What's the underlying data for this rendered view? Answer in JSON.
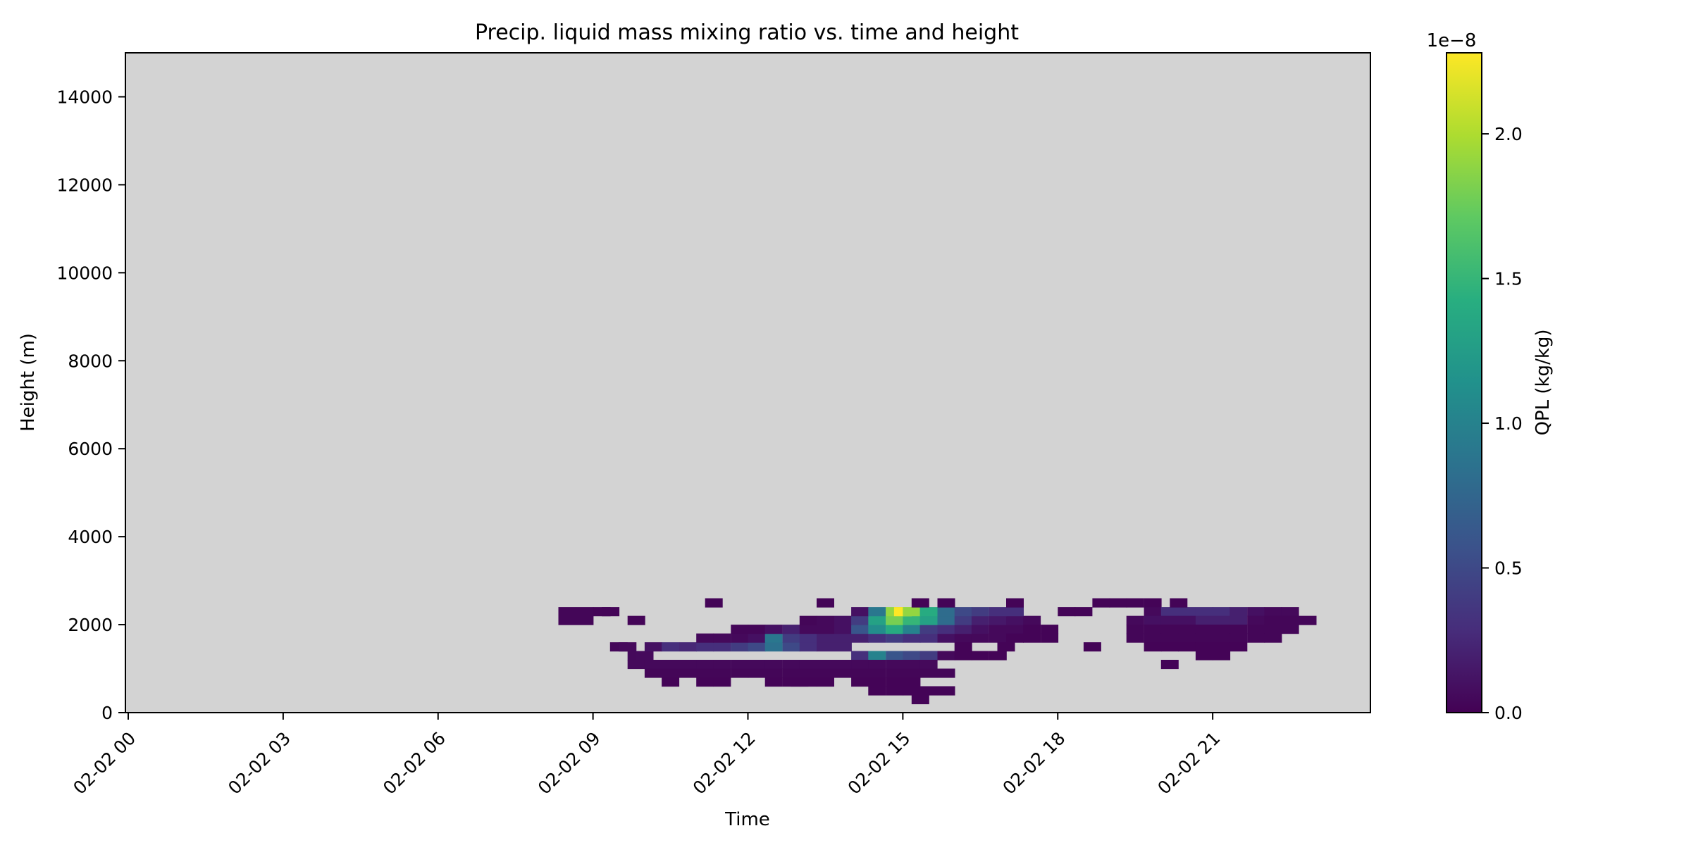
{
  "chart_data": {
    "type": "heatmap",
    "title": "Precip. liquid mass mixing ratio vs. time and height",
    "xlabel": "Time",
    "ylabel": "Height (m)",
    "x_unit": "hours since 02-02 00:00",
    "xlim": [
      0,
      24
    ],
    "ylim": [
      0,
      15000
    ],
    "x_ticks": [
      {
        "value": 0,
        "label": "02-02 00"
      },
      {
        "value": 3,
        "label": "02-02 03"
      },
      {
        "value": 6,
        "label": "02-02 06"
      },
      {
        "value": 9,
        "label": "02-02 09"
      },
      {
        "value": 12,
        "label": "02-02 12"
      },
      {
        "value": 15,
        "label": "02-02 15"
      },
      {
        "value": 18,
        "label": "02-02 18"
      },
      {
        "value": 21,
        "label": "02-02 21"
      }
    ],
    "y_ticks": [
      {
        "value": 0,
        "label": "0"
      },
      {
        "value": 2000,
        "label": "2000"
      },
      {
        "value": 4000,
        "label": "4000"
      },
      {
        "value": 6000,
        "label": "6000"
      },
      {
        "value": 8000,
        "label": "8000"
      },
      {
        "value": 10000,
        "label": "10000"
      },
      {
        "value": 12000,
        "label": "12000"
      },
      {
        "value": 14000,
        "label": "14000"
      }
    ],
    "colorbar": {
      "label": "QPL (kg/kg)",
      "scale_label": "1e−8",
      "colormap": "viridis",
      "range": [
        0,
        2.28
      ],
      "ticks": [
        {
          "value": 0.0,
          "label": "0.0"
        },
        {
          "value": 0.5,
          "label": "0.5"
        },
        {
          "value": 1.0,
          "label": "1.0"
        },
        {
          "value": 1.5,
          "label": "1.5"
        },
        {
          "value": 2.0,
          "label": "2.0"
        }
      ]
    },
    "missing_color": "#d3d3d3",
    "cell_width_hours": 0.333,
    "cell_height_m": 200,
    "cells": [
      [
        8.33,
        2200,
        0.03
      ],
      [
        8.67,
        2200,
        0.03
      ],
      [
        9.0,
        2200,
        0.02
      ],
      [
        8.33,
        2000,
        0.03
      ],
      [
        8.67,
        2000,
        0.03
      ],
      [
        9.17,
        2200,
        0.02
      ],
      [
        9.67,
        2000,
        0.02
      ],
      [
        9.33,
        1400,
        0.04
      ],
      [
        9.5,
        1400,
        0.05
      ],
      [
        9.67,
        1200,
        0.05
      ],
      [
        9.83,
        1200,
        0.06
      ],
      [
        10.0,
        1400,
        0.1
      ],
      [
        10.33,
        1400,
        0.3
      ],
      [
        10.67,
        1400,
        0.25
      ],
      [
        11.0,
        1400,
        0.3
      ],
      [
        11.33,
        1400,
        0.3
      ],
      [
        11.67,
        1400,
        0.4
      ],
      [
        12.0,
        1400,
        0.5
      ],
      [
        12.33,
        1400,
        0.85
      ],
      [
        12.67,
        1400,
        0.5
      ],
      [
        13.0,
        1400,
        0.3
      ],
      [
        13.33,
        1400,
        0.2
      ],
      [
        13.67,
        1400,
        0.2
      ],
      [
        14.0,
        1200,
        0.3
      ],
      [
        14.33,
        1200,
        1.0
      ],
      [
        14.67,
        1200,
        0.6
      ],
      [
        15.0,
        1200,
        0.5
      ],
      [
        15.33,
        1200,
        0.4
      ],
      [
        15.67,
        1200,
        0.05
      ],
      [
        9.67,
        1000,
        0.05
      ],
      [
        10.0,
        1000,
        0.05
      ],
      [
        10.33,
        1000,
        0.05
      ],
      [
        10.67,
        1000,
        0.05
      ],
      [
        11.0,
        1000,
        0.05
      ],
      [
        11.33,
        1000,
        0.05
      ],
      [
        11.67,
        1000,
        0.05
      ],
      [
        12.0,
        1000,
        0.05
      ],
      [
        12.33,
        1000,
        0.05
      ],
      [
        12.67,
        1000,
        0.05
      ],
      [
        13.0,
        1000,
        0.05
      ],
      [
        13.33,
        1000,
        0.05
      ],
      [
        13.67,
        1000,
        0.05
      ],
      [
        14.0,
        1000,
        0.05
      ],
      [
        14.33,
        1000,
        0.05
      ],
      [
        14.67,
        1000,
        0.05
      ],
      [
        15.0,
        1000,
        0.05
      ],
      [
        15.33,
        1000,
        0.05
      ],
      [
        10.0,
        800,
        0.03
      ],
      [
        10.33,
        800,
        0.03
      ],
      [
        10.67,
        800,
        0.03
      ],
      [
        11.0,
        800,
        0.03
      ],
      [
        11.33,
        800,
        0.03
      ],
      [
        11.67,
        800,
        0.03
      ],
      [
        12.0,
        800,
        0.03
      ],
      [
        12.33,
        800,
        0.03
      ],
      [
        12.67,
        800,
        0.03
      ],
      [
        13.0,
        800,
        0.03
      ],
      [
        13.33,
        800,
        0.03
      ],
      [
        13.67,
        800,
        0.03
      ],
      [
        14.0,
        800,
        0.03
      ],
      [
        14.33,
        800,
        0.03
      ],
      [
        14.67,
        800,
        0.03
      ],
      [
        15.0,
        800,
        0.03
      ],
      [
        15.33,
        800,
        0.03
      ],
      [
        15.67,
        800,
        0.03
      ],
      [
        10.33,
        600,
        0.02
      ],
      [
        11.0,
        600,
        0.02
      ],
      [
        11.33,
        600,
        0.02
      ],
      [
        12.33,
        600,
        0.02
      ],
      [
        12.67,
        600,
        0.02
      ],
      [
        13.33,
        600,
        0.02
      ],
      [
        14.0,
        600,
        0.02
      ],
      [
        14.33,
        600,
        0.02
      ],
      [
        14.67,
        600,
        0.02
      ],
      [
        15.0,
        600,
        0.02
      ],
      [
        12.83,
        600,
        0.02
      ],
      [
        13.0,
        600,
        0.02
      ],
      [
        14.33,
        400,
        0.02
      ],
      [
        14.67,
        400,
        0.02
      ],
      [
        15.0,
        400,
        0.02
      ],
      [
        15.33,
        400,
        0.02
      ],
      [
        15.67,
        400,
        0.02
      ],
      [
        15.17,
        200,
        0.02
      ],
      [
        11.0,
        1600,
        0.05
      ],
      [
        11.33,
        1600,
        0.05
      ],
      [
        11.67,
        1600,
        0.05
      ],
      [
        12.0,
        1600,
        0.1
      ],
      [
        12.33,
        1600,
        0.9
      ],
      [
        12.67,
        1600,
        0.4
      ],
      [
        13.0,
        1600,
        0.3
      ],
      [
        13.33,
        1600,
        0.2
      ],
      [
        13.67,
        1600,
        0.2
      ],
      [
        14.0,
        1600,
        0.2
      ],
      [
        14.33,
        1600,
        0.3
      ],
      [
        14.67,
        1600,
        0.4
      ],
      [
        15.0,
        1600,
        0.3
      ],
      [
        15.33,
        1600,
        0.3
      ],
      [
        15.67,
        1600,
        0.1
      ],
      [
        16.0,
        1600,
        0.05
      ],
      [
        16.33,
        1600,
        0.05
      ],
      [
        16.67,
        1600,
        0.05
      ],
      [
        11.67,
        1800,
        0.03
      ],
      [
        12.0,
        1800,
        0.03
      ],
      [
        12.33,
        1800,
        0.1
      ],
      [
        12.67,
        1800,
        0.2
      ],
      [
        13.0,
        1800,
        0.05
      ],
      [
        13.33,
        1800,
        0.05
      ],
      [
        13.67,
        1800,
        0.1
      ],
      [
        14.0,
        1800,
        0.6
      ],
      [
        14.33,
        1800,
        1.1
      ],
      [
        14.67,
        1800,
        1.4
      ],
      [
        15.0,
        1800,
        1.0
      ],
      [
        15.33,
        1800,
        0.4
      ],
      [
        15.67,
        1800,
        0.3
      ],
      [
        16.0,
        1800,
        0.2
      ],
      [
        16.33,
        1800,
        0.1
      ],
      [
        16.67,
        1800,
        0.05
      ],
      [
        17.0,
        1800,
        0.05
      ],
      [
        13.0,
        2000,
        0.03
      ],
      [
        13.33,
        2000,
        0.05
      ],
      [
        13.67,
        2000,
        0.1
      ],
      [
        14.0,
        2000,
        0.4
      ],
      [
        14.33,
        2000,
        1.3
      ],
      [
        14.67,
        2000,
        1.8
      ],
      [
        15.0,
        2000,
        1.5
      ],
      [
        15.33,
        2000,
        1.3
      ],
      [
        15.67,
        2000,
        0.8
      ],
      [
        16.0,
        2000,
        0.4
      ],
      [
        16.33,
        2000,
        0.2
      ],
      [
        16.67,
        2000,
        0.15
      ],
      [
        17.0,
        2000,
        0.1
      ],
      [
        17.33,
        2000,
        0.05
      ],
      [
        14.0,
        2200,
        0.1
      ],
      [
        14.33,
        2200,
        0.9
      ],
      [
        14.67,
        2200,
        1.9
      ],
      [
        14.83,
        2200,
        2.28
      ],
      [
        15.0,
        2200,
        1.9
      ],
      [
        15.33,
        2200,
        1.4
      ],
      [
        15.67,
        2200,
        0.8
      ],
      [
        16.0,
        2200,
        0.5
      ],
      [
        16.33,
        2200,
        0.4
      ],
      [
        16.67,
        2200,
        0.3
      ],
      [
        17.0,
        2200,
        0.3
      ],
      [
        13.33,
        2400,
        0.02
      ],
      [
        11.17,
        2400,
        0.02
      ],
      [
        15.17,
        2400,
        0.02
      ],
      [
        15.67,
        2400,
        0.02
      ],
      [
        17.0,
        2400,
        0.02
      ],
      [
        16.0,
        1200,
        0.02
      ],
      [
        16.33,
        1200,
        0.02
      ],
      [
        16.67,
        1200,
        0.02
      ],
      [
        16.0,
        1400,
        0.02
      ],
      [
        16.83,
        1400,
        0.02
      ],
      [
        17.0,
        1600,
        0.02
      ],
      [
        17.33,
        1600,
        0.02
      ],
      [
        17.67,
        1600,
        0.02
      ],
      [
        17.67,
        1800,
        0.02
      ],
      [
        17.33,
        1800,
        0.02
      ],
      [
        18.0,
        2200,
        0.02
      ],
      [
        18.33,
        2200,
        0.02
      ],
      [
        18.67,
        2400,
        0.02
      ],
      [
        19.0,
        2400,
        0.02
      ],
      [
        18.5,
        1400,
        0.02
      ],
      [
        19.33,
        2400,
        0.02
      ],
      [
        19.67,
        2400,
        0.02
      ],
      [
        19.67,
        2200,
        0.05
      ],
      [
        20.0,
        2200,
        0.3
      ],
      [
        20.33,
        2200,
        0.3
      ],
      [
        20.67,
        2200,
        0.3
      ],
      [
        21.0,
        2200,
        0.3
      ],
      [
        21.33,
        2200,
        0.2
      ],
      [
        21.67,
        2200,
        0.1
      ],
      [
        22.0,
        2200,
        0.05
      ],
      [
        22.33,
        2200,
        0.05
      ],
      [
        20.17,
        2400,
        0.02
      ],
      [
        19.33,
        2000,
        0.05
      ],
      [
        19.67,
        2000,
        0.1
      ],
      [
        20.0,
        2000,
        0.1
      ],
      [
        20.33,
        2000,
        0.1
      ],
      [
        20.67,
        2000,
        0.2
      ],
      [
        21.0,
        2000,
        0.2
      ],
      [
        21.33,
        2000,
        0.2
      ],
      [
        21.67,
        2000,
        0.05
      ],
      [
        22.0,
        2000,
        0.03
      ],
      [
        22.33,
        2000,
        0.03
      ],
      [
        22.67,
        2000,
        0.03
      ],
      [
        19.33,
        1800,
        0.03
      ],
      [
        19.67,
        1800,
        0.03
      ],
      [
        20.0,
        1800,
        0.03
      ],
      [
        20.33,
        1800,
        0.03
      ],
      [
        20.67,
        1800,
        0.03
      ],
      [
        21.0,
        1800,
        0.03
      ],
      [
        21.33,
        1800,
        0.03
      ],
      [
        21.67,
        1800,
        0.03
      ],
      [
        22.0,
        1800,
        0.03
      ],
      [
        22.33,
        1800,
        0.03
      ],
      [
        19.33,
        1600,
        0.03
      ],
      [
        19.67,
        1600,
        0.03
      ],
      [
        20.0,
        1600,
        0.03
      ],
      [
        20.33,
        1600,
        0.03
      ],
      [
        20.67,
        1600,
        0.03
      ],
      [
        21.0,
        1600,
        0.03
      ],
      [
        21.33,
        1600,
        0.03
      ],
      [
        21.67,
        1600,
        0.03
      ],
      [
        22.0,
        1600,
        0.03
      ],
      [
        19.67,
        1400,
        0.02
      ],
      [
        20.0,
        1400,
        0.02
      ],
      [
        20.33,
        1400,
        0.02
      ],
      [
        20.67,
        1400,
        0.02
      ],
      [
        21.0,
        1400,
        0.02
      ],
      [
        21.33,
        1400,
        0.02
      ],
      [
        20.67,
        1200,
        0.02
      ],
      [
        21.0,
        1200,
        0.02
      ],
      [
        20.0,
        1000,
        0.02
      ]
    ]
  }
}
